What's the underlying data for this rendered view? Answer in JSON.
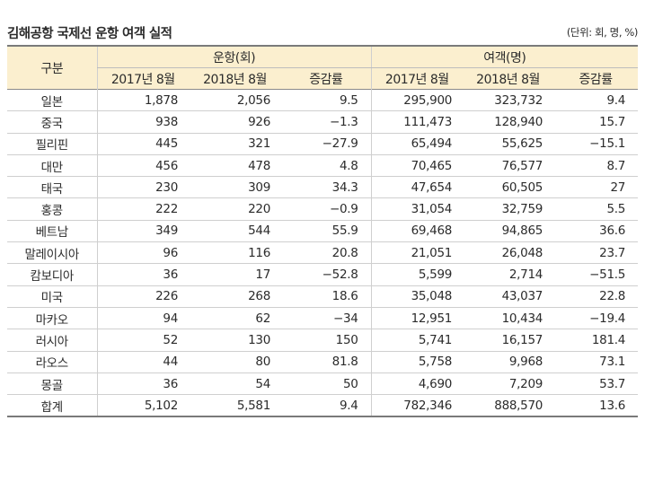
{
  "title": "김해공항 국제선 운항 여객 실적",
  "unit": "(단위: 회, 명, %)",
  "headers": {
    "category": "구분",
    "group_ops": "운항(회)",
    "group_pax": "여객(명)",
    "y2017": "2017년 8월",
    "y2018": "2018년 8월",
    "rate": "증감률"
  },
  "rows": [
    [
      "일본",
      "1,878",
      "2,056",
      "9.5",
      "295,900",
      "323,732",
      "9.4"
    ],
    [
      "중국",
      "938",
      "926",
      "−1.3",
      "111,473",
      "128,940",
      "15.7"
    ],
    [
      "필리핀",
      "445",
      "321",
      "−27.9",
      "65,494",
      "55,625",
      "−15.1"
    ],
    [
      "대만",
      "456",
      "478",
      "4.8",
      "70,465",
      "76,577",
      "8.7"
    ],
    [
      "태국",
      "230",
      "309",
      "34.3",
      "47,654",
      "60,505",
      "27"
    ],
    [
      "홍콩",
      "222",
      "220",
      "−0.9",
      "31,054",
      "32,759",
      "5.5"
    ],
    [
      "베트남",
      "349",
      "544",
      "55.9",
      "69,468",
      "94,865",
      "36.6"
    ],
    [
      "말레이시아",
      "96",
      "116",
      "20.8",
      "21,051",
      "26,048",
      "23.7"
    ],
    [
      "캄보디아",
      "36",
      "17",
      "−52.8",
      "5,599",
      "2,714",
      "−51.5"
    ],
    [
      "미국",
      "226",
      "268",
      "18.6",
      "35,048",
      "43,037",
      "22.8"
    ],
    [
      "마카오",
      "94",
      "62",
      "−34",
      "12,951",
      "10,434",
      "−19.4"
    ],
    [
      "러시아",
      "52",
      "130",
      "150",
      "5,741",
      "16,157",
      "181.4"
    ],
    [
      "라오스",
      "44",
      "80",
      "81.8",
      "5,758",
      "9,968",
      "73.1"
    ],
    [
      "몽골",
      "36",
      "54",
      "50",
      "4,690",
      "7,209",
      "53.7"
    ],
    [
      "합계",
      "5,102",
      "5,581",
      "9.4",
      "782,346",
      "888,570",
      "13.6"
    ]
  ]
}
